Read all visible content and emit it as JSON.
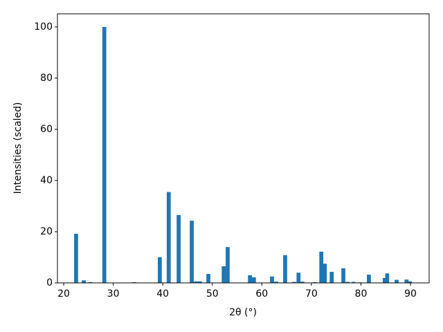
{
  "chart_data": {
    "type": "bar",
    "x": [
      22.5,
      24.05,
      25.4,
      28.2,
      34.25,
      39.4,
      41.2,
      43.2,
      45.85,
      46.7,
      47.5,
      49.2,
      52.3,
      53.1,
      57.6,
      58.4,
      62.05,
      62.9,
      64.7,
      66.5,
      67.4,
      68.2,
      70.7,
      72.0,
      72.7,
      74.1,
      76.45,
      77.3,
      78.5,
      79.8,
      81.6,
      84.8,
      85.3,
      87.2,
      89.2,
      89.9
    ],
    "values": [
      19.2,
      1.0,
      0.3,
      100,
      0.3,
      10.0,
      35.5,
      26.5,
      24.3,
      0.6,
      0.6,
      3.5,
      6.5,
      14.0,
      3.0,
      2.2,
      2.5,
      0.5,
      10.8,
      0.4,
      4.0,
      0.5,
      0.3,
      12.2,
      7.5,
      4.3,
      5.7,
      0.4,
      0.4,
      0.2,
      3.2,
      1.9,
      3.7,
      1.2,
      1.3,
      0.6
    ],
    "color": "#1f77b4",
    "x_label": "2θ (°)",
    "y_label": "Intensities (scaled)",
    "xlim": [
      18.74,
      93.77
    ],
    "xticks": [
      20,
      30,
      40,
      50,
      60,
      70,
      80,
      90
    ],
    "ylim": [
      0,
      105.1
    ],
    "yticks": [
      0,
      20,
      40,
      60,
      80,
      100
    ],
    "grid": false
  }
}
